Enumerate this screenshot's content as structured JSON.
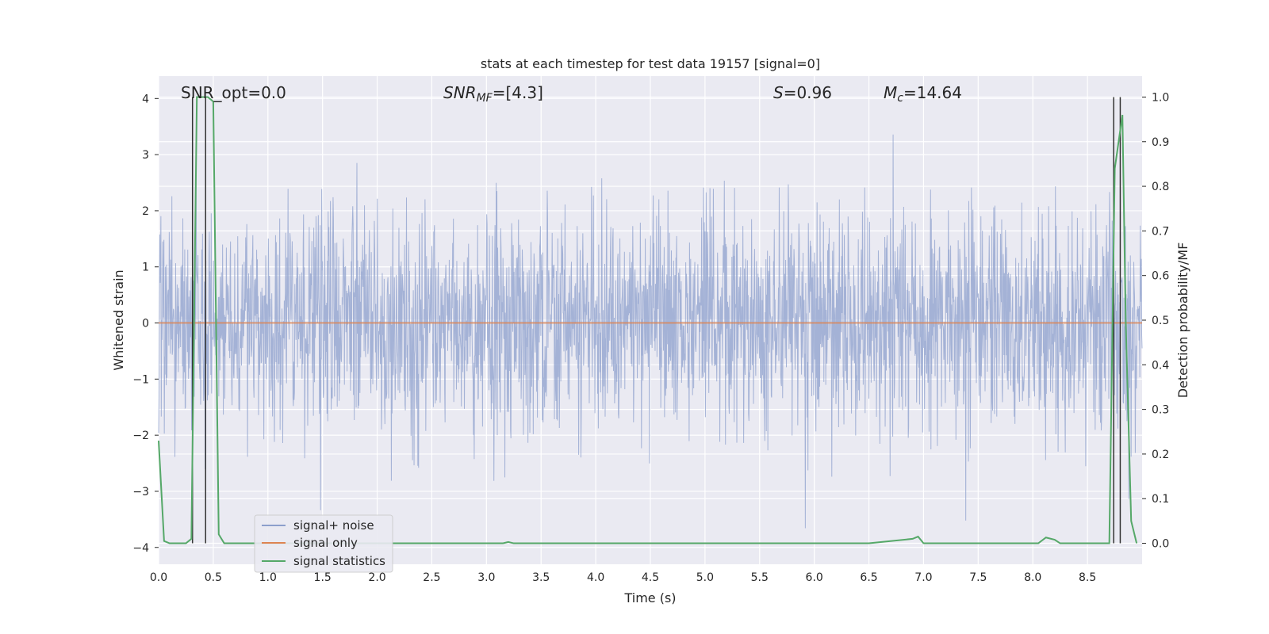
{
  "chart_data": {
    "type": "line",
    "title": "stats at each timestep for test data 19157 [signal=0]",
    "xlabel": "Time (s)",
    "ylabel": "Whitened strain",
    "ylabel_right": "Detection probability/MF",
    "xlim": [
      0.0,
      9.0
    ],
    "ylim": [
      -4.3,
      4.4
    ],
    "ylim_right": [
      -0.047,
      1.047
    ],
    "x_ticks": [
      "0.0",
      "0.5",
      "1.0",
      "1.5",
      "2.0",
      "2.5",
      "3.0",
      "3.5",
      "4.0",
      "4.5",
      "5.0",
      "5.5",
      "6.0",
      "6.5",
      "7.0",
      "7.5",
      "8.0",
      "8.5"
    ],
    "y_ticks": [
      "4",
      "3",
      "2",
      "1",
      "0",
      "−1",
      "−2",
      "−3",
      "−4"
    ],
    "y_right_ticks": [
      "1.0",
      "0.9",
      "0.8",
      "0.7",
      "0.6",
      "0.5",
      "0.4",
      "0.3",
      "0.2",
      "0.1",
      "0.0"
    ],
    "grid": true,
    "legend_position": "lower-left",
    "annotations": {
      "snr_opt": "SNR_opt=0.0",
      "snr_mf_sym": "SNR",
      "snr_mf_sub": "MF",
      "snr_mf_rest": "=[4.3]",
      "s_sym": "S",
      "s_rest": "=0.96",
      "mc_sym": "M",
      "mc_sub": "c",
      "mc_rest": "=14.64"
    },
    "series": [
      {
        "name": "signal+ noise",
        "color": "#8c9fcc",
        "style": "dense noisy strain, amplitude ~N(0,1), peaks up to ~±3.7"
      },
      {
        "name": "signal only",
        "color": "#dd8452",
        "x": [
          0.0,
          9.0
        ],
        "y": [
          0.0,
          0.0
        ]
      },
      {
        "name": "signal statistics",
        "color": "#55a868",
        "axis": "right",
        "x": [
          0.0,
          0.05,
          0.1,
          0.15,
          0.2,
          0.25,
          0.3,
          0.35,
          0.4,
          0.45,
          0.5,
          0.55,
          0.6,
          0.8,
          1.0,
          2.0,
          3.0,
          3.15,
          3.2,
          3.25,
          3.5,
          4.0,
          5.0,
          6.0,
          6.5,
          6.9,
          6.95,
          7.0,
          7.5,
          8.0,
          8.05,
          8.12,
          8.2,
          8.25,
          8.5,
          8.7,
          8.75,
          8.82,
          8.85,
          8.9,
          8.95
        ],
        "y": [
          0.23,
          0.005,
          0.0,
          0.0,
          0.0,
          0.0,
          0.01,
          1.0,
          1.0,
          1.0,
          0.99,
          0.02,
          0.0,
          0.0,
          0.0,
          0.0,
          0.0,
          0.0,
          0.003,
          0.0,
          0.0,
          0.0,
          0.0,
          0.0,
          0.0,
          0.01,
          0.015,
          0.0,
          0.0,
          0.0,
          0.0,
          0.013,
          0.008,
          0.0,
          0.0,
          0.0,
          0.84,
          0.96,
          0.5,
          0.05,
          0.0
        ]
      }
    ],
    "vertical_lines": [
      0.31,
      0.43,
      8.74,
      8.8
    ]
  }
}
